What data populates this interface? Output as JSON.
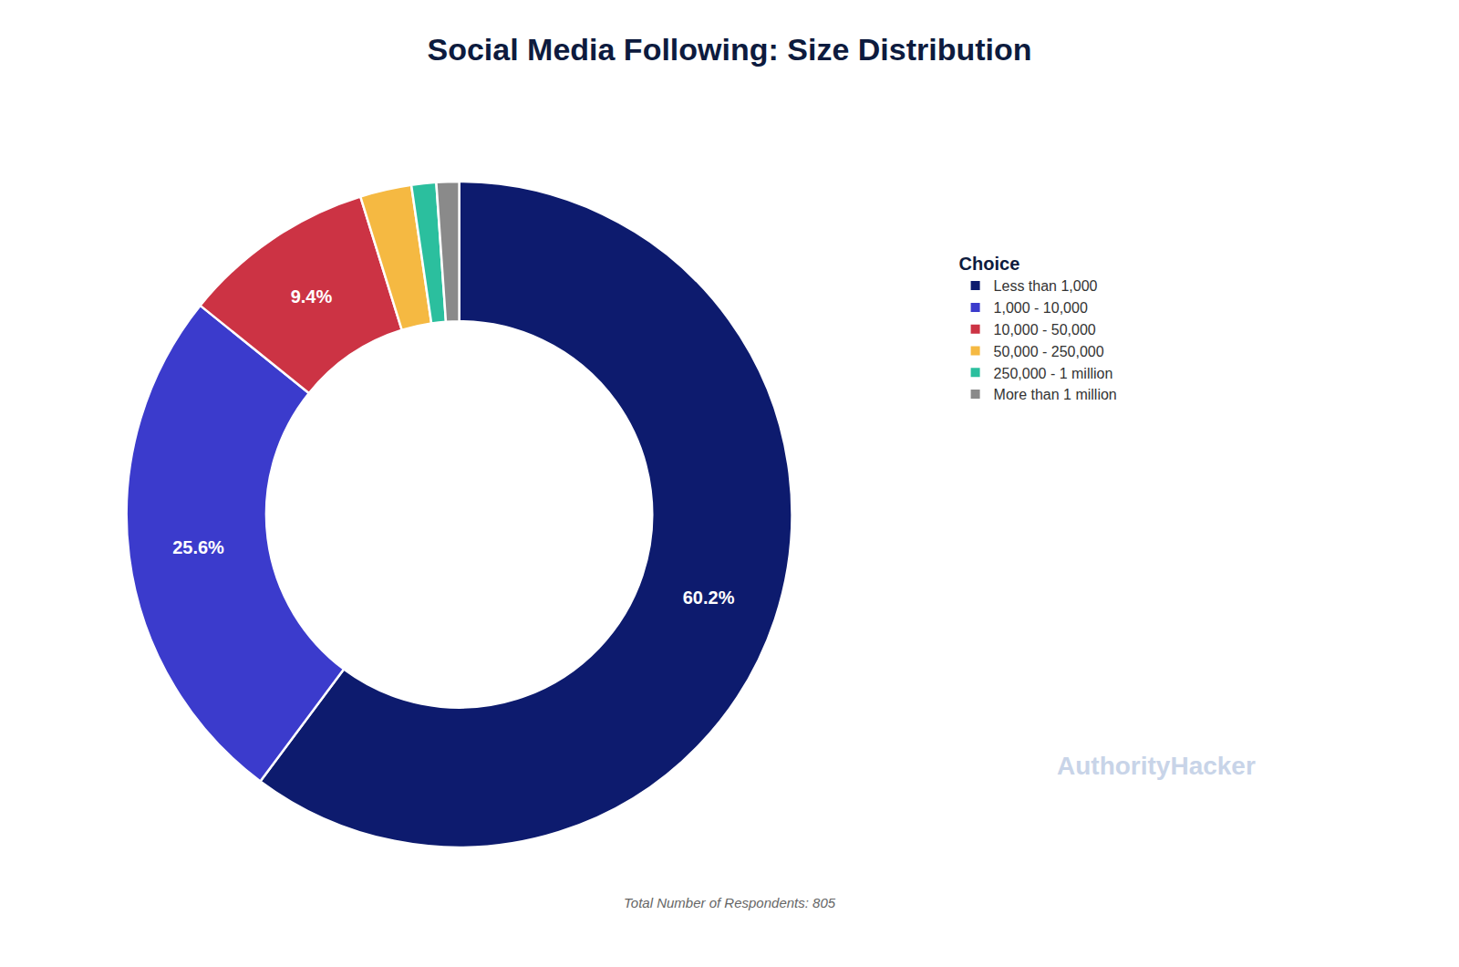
{
  "chart_data": {
    "type": "pie",
    "title": "Social Media Following: Size Distribution",
    "categories": [
      "Less than 1,000",
      "1,000 - 10,000",
      "10,000 - 50,000",
      "50,000 - 250,000",
      "250,000 - 1 million",
      "More than 1 million"
    ],
    "values": [
      60.2,
      25.6,
      9.4,
      2.5,
      1.2,
      1.1
    ],
    "value_labels": [
      "60.2%",
      "25.6%",
      "9.4%",
      null,
      null,
      null
    ],
    "colors": [
      "#0d1b6e",
      "#3b3bcc",
      "#cc3344",
      "#f5b942",
      "#2bbf9e",
      "#8a8a8a"
    ],
    "data_labels": true,
    "legend": "right",
    "legend_title": "Choice",
    "annotations": [
      "Total Number of Respondents: 805",
      "AuthorityHacker"
    ]
  }
}
